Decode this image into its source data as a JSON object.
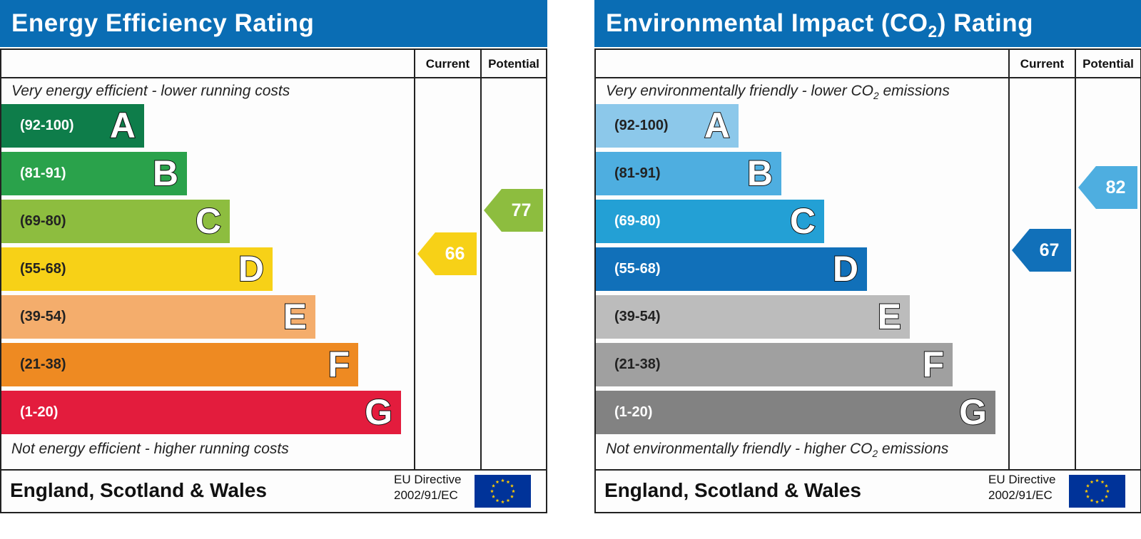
{
  "chart_data": [
    {
      "type": "bar",
      "title": "Energy Efficiency Rating",
      "columns": [
        "Current",
        "Potential"
      ],
      "top_caption": "Very energy efficient - lower running costs",
      "bottom_caption": "Not energy efficient - higher running costs",
      "bands": [
        {
          "range": "(92-100)",
          "letter": "A",
          "color": "#0e7d4a"
        },
        {
          "range": "(81-91)",
          "letter": "B",
          "color": "#2aa24b"
        },
        {
          "range": "(69-80)",
          "letter": "C",
          "color": "#8dbd3f"
        },
        {
          "range": "(55-68)",
          "letter": "D",
          "color": "#f7d117"
        },
        {
          "range": "(39-54)",
          "letter": "E",
          "color": "#f4ad6c"
        },
        {
          "range": "(21-38)",
          "letter": "F",
          "color": "#ee8a22"
        },
        {
          "range": "(1-20)",
          "letter": "G",
          "color": "#e31c3d"
        }
      ],
      "current": {
        "value": 66,
        "color": "#f7d117"
      },
      "potential": {
        "value": 77,
        "color": "#8dbd3f"
      },
      "footer_region": "England, Scotland & Wales",
      "eu_directive": [
        "EU Directive",
        "2002/91/EC"
      ]
    },
    {
      "type": "bar",
      "title_parts": [
        "Environmental Impact (CO",
        "2",
        ") Rating"
      ],
      "columns": [
        "Current",
        "Potential"
      ],
      "top_caption_parts": [
        "Very environmentally friendly - lower CO",
        "2",
        " emissions"
      ],
      "bottom_caption_parts": [
        "Not environmentally friendly - higher CO",
        "2",
        " emissions"
      ],
      "bands": [
        {
          "range": "(92-100)",
          "letter": "A",
          "color": "#8cc8ea"
        },
        {
          "range": "(81-91)",
          "letter": "B",
          "color": "#4eaee0"
        },
        {
          "range": "(69-80)",
          "letter": "C",
          "color": "#23a0d5"
        },
        {
          "range": "(55-68)",
          "letter": "D",
          "color": "#1170b9"
        },
        {
          "range": "(39-54)",
          "letter": "E",
          "color": "#bcbcbc"
        },
        {
          "range": "(21-38)",
          "letter": "F",
          "color": "#a0a0a0"
        },
        {
          "range": "(1-20)",
          "letter": "G",
          "color": "#828282"
        }
      ],
      "current": {
        "value": 67,
        "color": "#1170b9"
      },
      "potential": {
        "value": 82,
        "color": "#4eaee0"
      },
      "footer_region": "England, Scotland & Wales",
      "eu_directive": [
        "EU Directive",
        "2002/91/EC"
      ]
    }
  ]
}
